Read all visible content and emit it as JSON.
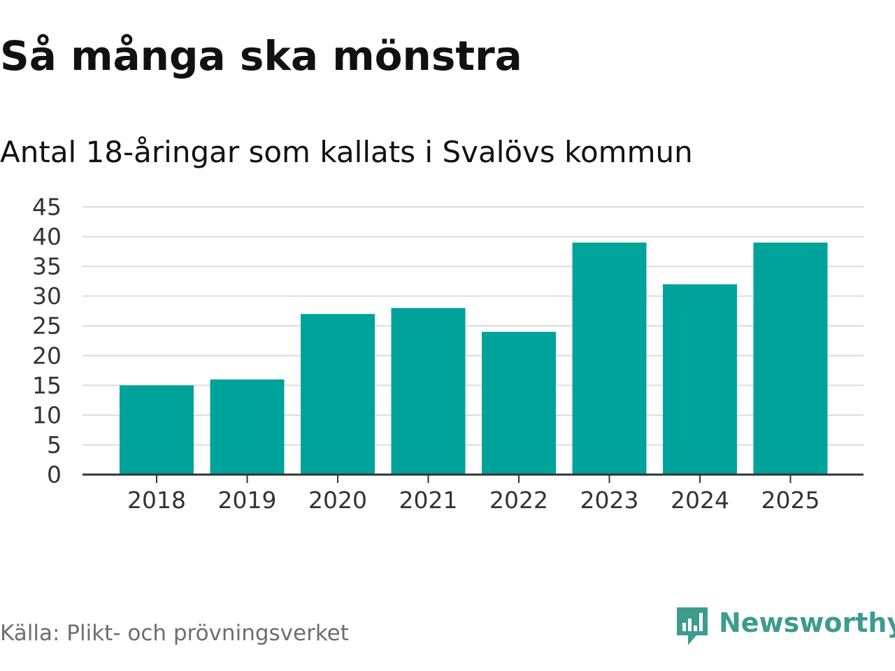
{
  "title": "Så många ska mönstra",
  "subtitle": "Antal 18-åringar som kallats i Svalövs kommun",
  "source": "Källa: Plikt- och prövningsverket",
  "brand": {
    "name": "Newsworthy",
    "icon": "newsworthy-logo-icon",
    "color": "#3d9c8d"
  },
  "colors": {
    "bar": "#00a39a",
    "grid": "#dcdcdc",
    "axis": "#333333",
    "tick_text": "#333333"
  },
  "chart_data": {
    "type": "bar",
    "categories": [
      "2018",
      "2019",
      "2020",
      "2021",
      "2022",
      "2023",
      "2024",
      "2025"
    ],
    "values": [
      15,
      16,
      27,
      28,
      24,
      39,
      32,
      39
    ],
    "ylim": [
      0,
      45
    ],
    "yticks": [
      "0",
      "5",
      "10",
      "15",
      "20",
      "25",
      "30",
      "35",
      "40",
      "45"
    ],
    "grid": true,
    "legend": false
  }
}
